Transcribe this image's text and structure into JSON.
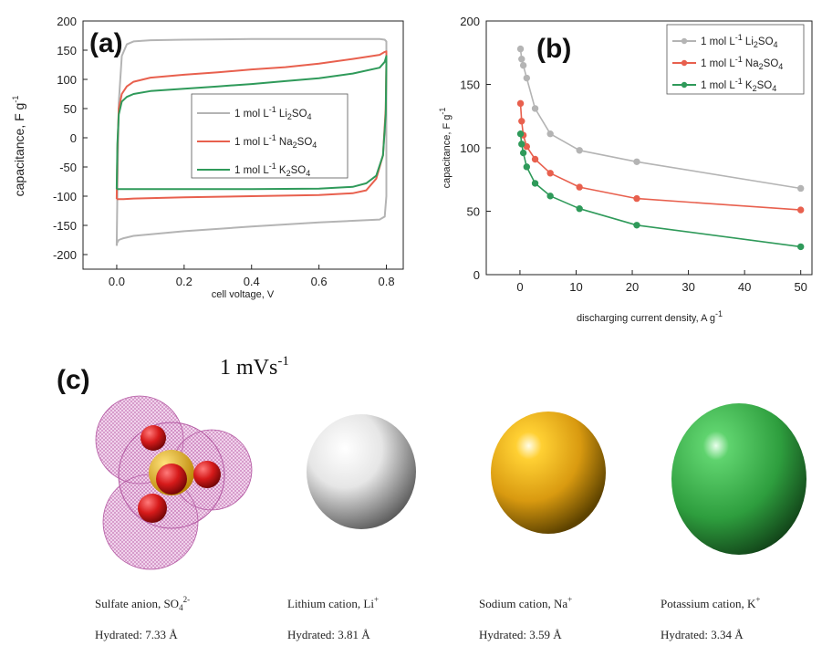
{
  "panels": {
    "a": "(a)",
    "b": "(b)",
    "c": "(c)"
  },
  "scan_rate": "1 mVs",
  "scan_rate_exp": "-1",
  "chart_data": [
    {
      "type": "line",
      "panel": "a",
      "xlabel": "cell voltage, V",
      "ylabel": "capacitance, F g",
      "ylabel_exp": "-1",
      "xlim": [
        -0.1,
        0.85
      ],
      "ylim": [
        -225,
        200
      ],
      "xticks": [
        "0.0",
        "0.2",
        "0.4",
        "0.6",
        "0.8"
      ],
      "xtick_values": [
        0,
        0.2,
        0.4,
        0.6,
        0.8
      ],
      "yticks": [
        "200",
        "150",
        "100",
        "50",
        "0",
        "-50",
        "-100",
        "-150",
        "-200"
      ],
      "ytick_values": [
        200,
        150,
        100,
        50,
        0,
        -50,
        -100,
        -150,
        -200
      ],
      "legend_position": "center-right",
      "series": [
        {
          "name": "1 mol L-1 Li2SO4",
          "legend_prefix": "1 mol L",
          "legend_exp": "-1",
          "legend_formula": "Li",
          "legend_sub": "2",
          "legend_tail": "SO",
          "legend_sub2": "4",
          "color": "#b4b4b4",
          "x": [
            0.0,
            0.002,
            0.006,
            0.015,
            0.03,
            0.05,
            0.1,
            0.2,
            0.4,
            0.6,
            0.78,
            0.795,
            0.8,
            0.8,
            0.8,
            0.795,
            0.78,
            0.6,
            0.4,
            0.2,
            0.05,
            0.02,
            0.006,
            0.001,
            0.0
          ],
          "y": [
            -185,
            -90,
            60,
            140,
            160,
            165,
            167,
            168,
            169,
            169,
            169,
            168,
            165,
            100,
            -100,
            -135,
            -140,
            -145,
            -152,
            -160,
            -168,
            -172,
            -175,
            -180,
            -185
          ]
        },
        {
          "name": "1 mol L-1 Na2SO4",
          "legend_prefix": "1 mol L",
          "legend_exp": "-1",
          "legend_formula": "Na",
          "legend_sub": "2",
          "legend_tail": "SO",
          "legend_sub2": "4",
          "color": "#e8604e",
          "x": [
            0.0,
            0.002,
            0.006,
            0.015,
            0.03,
            0.05,
            0.1,
            0.2,
            0.3,
            0.4,
            0.5,
            0.6,
            0.7,
            0.78,
            0.795,
            0.8,
            0.8,
            0.798,
            0.79,
            0.77,
            0.74,
            0.7,
            0.6,
            0.4,
            0.2,
            0.05,
            0.02,
            0.005,
            0.0
          ],
          "y": [
            -105,
            -20,
            50,
            75,
            88,
            96,
            103,
            108,
            112,
            117,
            121,
            127,
            135,
            142,
            147,
            148,
            130,
            50,
            -30,
            -70,
            -90,
            -95,
            -98,
            -100,
            -102,
            -104,
            -105,
            -105,
            -105
          ]
        },
        {
          "name": "1 mol L-1 K2SO4",
          "legend_prefix": "1 mol L",
          "legend_exp": "-1",
          "legend_formula": "K",
          "legend_sub": "2",
          "legend_tail": "SO",
          "legend_sub2": "4",
          "color": "#2f9a5a",
          "x": [
            0.0,
            0.002,
            0.006,
            0.015,
            0.03,
            0.05,
            0.1,
            0.2,
            0.3,
            0.4,
            0.5,
            0.6,
            0.7,
            0.78,
            0.795,
            0.8,
            0.8,
            0.798,
            0.79,
            0.77,
            0.74,
            0.7,
            0.6,
            0.4,
            0.2,
            0.05,
            0.02,
            0.005,
            0.0
          ],
          "y": [
            -88,
            -10,
            40,
            62,
            70,
            75,
            80,
            84,
            88,
            92,
            97,
            102,
            110,
            120,
            130,
            140,
            125,
            40,
            -30,
            -65,
            -78,
            -84,
            -87,
            -88,
            -88,
            -88,
            -88,
            -88,
            -88
          ]
        }
      ]
    },
    {
      "type": "line",
      "panel": "b",
      "xlabel": "discharging current density, A g",
      "xlabel_exp": "-1",
      "ylabel": "capacitance, F g",
      "ylabel_exp": "-1",
      "xlim": [
        -6,
        52
      ],
      "ylim": [
        0,
        200
      ],
      "xticks": [
        "0",
        "10",
        "20",
        "30",
        "40",
        "50"
      ],
      "xtick_values": [
        0,
        10,
        20,
        30,
        40,
        50
      ],
      "yticks": [
        "200",
        "150",
        "100",
        "50",
        "0"
      ],
      "ytick_values": [
        200,
        150,
        100,
        50,
        0
      ],
      "legend_position": "top-right",
      "series": [
        {
          "name": "1 mol L-1 Li2SO4",
          "legend_prefix": "1 mol L",
          "legend_exp": "-1",
          "legend_formula": "Li",
          "legend_sub": "2",
          "legend_tail": "SO",
          "legend_sub2": "4",
          "color": "#b4b4b4",
          "x": [
            0.1,
            0.3,
            0.6,
            1.2,
            2.7,
            5.4,
            10.6,
            20.8,
            50
          ],
          "y": [
            178,
            170,
            165,
            155,
            131,
            111,
            98,
            89,
            68
          ]
        },
        {
          "name": "1 mol L-1 Na2SO4",
          "legend_prefix": "1 mol L",
          "legend_exp": "-1",
          "legend_formula": "Na",
          "legend_sub": "2",
          "legend_tail": "SO",
          "legend_sub2": "4",
          "color": "#e8604e",
          "x": [
            0.1,
            0.3,
            0.6,
            1.2,
            2.7,
            5.4,
            10.6,
            20.8,
            50
          ],
          "y": [
            135,
            121,
            110,
            101,
            91,
            80,
            69,
            60,
            51
          ]
        },
        {
          "name": "1 mol L-1 K2SO4",
          "legend_prefix": "1 mol L",
          "legend_exp": "-1",
          "legend_formula": "K",
          "legend_sub": "2",
          "legend_tail": "SO",
          "legend_sub2": "4",
          "color": "#2f9a5a",
          "x": [
            0.1,
            0.3,
            0.6,
            1.2,
            2.7,
            5.4,
            10.6,
            20.8,
            50
          ],
          "y": [
            111,
            103,
            96,
            85,
            72,
            62,
            52,
            39,
            22
          ]
        }
      ]
    }
  ],
  "ions": [
    {
      "name": "Sulfate anion, SO",
      "sub": "4",
      "sup": "2-",
      "hydrated": "Hydrated: 7.33 Å"
    },
    {
      "name": "Lithium cation, Li",
      "sub": "",
      "sup": "+",
      "hydrated": "Hydrated: 3.81 Å"
    },
    {
      "name": "Sodium cation, Na",
      "sub": "",
      "sup": "+",
      "hydrated": "Hydrated: 3.59 Å"
    },
    {
      "name": "Potassium cation, K",
      "sub": "",
      "sup": "+",
      "hydrated": "Hydrated: 3.34 Å"
    }
  ]
}
